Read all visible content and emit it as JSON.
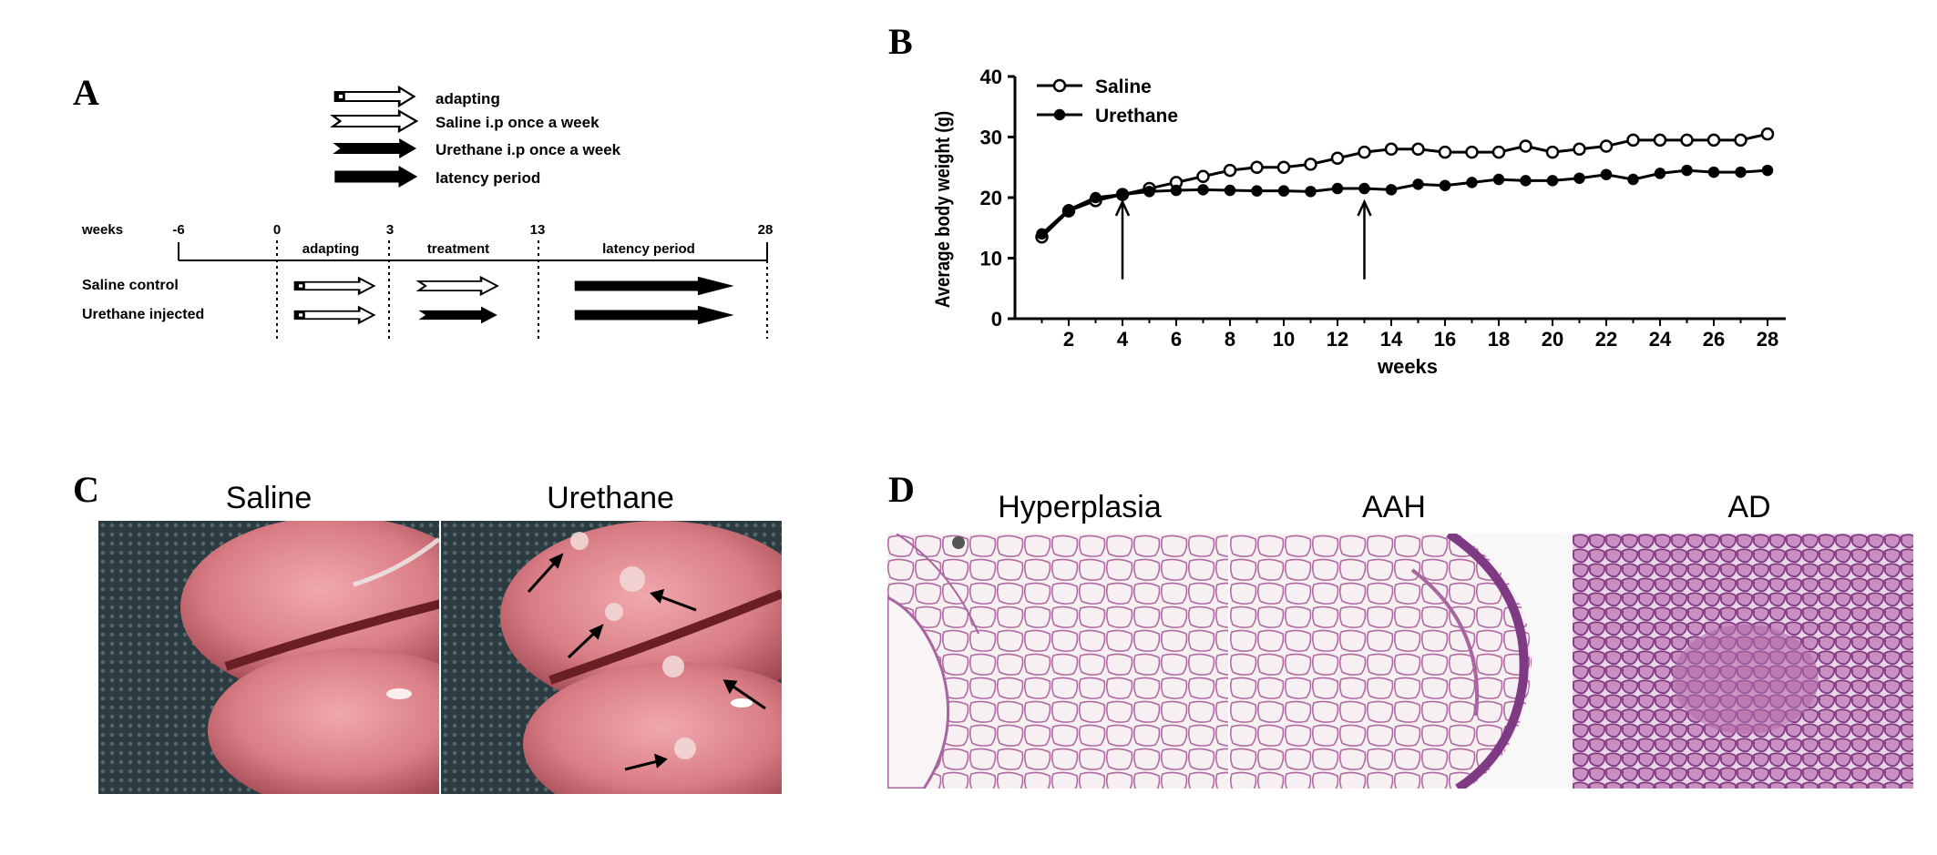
{
  "panels": {
    "a": {
      "letter": "A",
      "legend": [
        {
          "label": "adapting",
          "icon": "adapting-arrow-icon"
        },
        {
          "label": "Saline i.p once a week",
          "icon": "saline-arrow-icon"
        },
        {
          "label": "Urethane i.p once a week",
          "icon": "urethane-arrow-icon"
        },
        {
          "label": "latency period",
          "icon": "latency-arrow-icon"
        }
      ],
      "timeline_label": "weeks",
      "ticks": [
        "-6",
        "0",
        "3",
        "13",
        "28"
      ],
      "phases": [
        "adapting",
        "treatment",
        "latency period"
      ],
      "groups": [
        "Saline control",
        "Urethane injected"
      ]
    },
    "b": {
      "letter": "B"
    },
    "c": {
      "letter": "C",
      "titles": [
        "Saline",
        "Urethane"
      ]
    },
    "d": {
      "letter": "D",
      "titles": [
        "Hyperplasia",
        "AAH",
        "AD"
      ]
    }
  },
  "chart_data": {
    "type": "line",
    "xlabel": "weeks",
    "ylabel": "Average body weight (g)",
    "xlim": [
      0,
      28
    ],
    "ylim": [
      0,
      40
    ],
    "x_ticks": [
      "2",
      "4",
      "6",
      "8",
      "10",
      "12",
      "14",
      "16",
      "18",
      "20",
      "22",
      "24",
      "26",
      "28"
    ],
    "y_ticks": [
      "0",
      "10",
      "20",
      "30",
      "40"
    ],
    "legend_position": "top-left",
    "arrows_at_weeks": [
      4,
      13
    ],
    "x": [
      1,
      2,
      3,
      4,
      5,
      6,
      7,
      8,
      9,
      10,
      11,
      12,
      13,
      14,
      15,
      16,
      17,
      18,
      19,
      20,
      21,
      22,
      23,
      24,
      25,
      26,
      27,
      28
    ],
    "series": [
      {
        "name": "Saline",
        "marker": "open-circle",
        "values": [
          13.5,
          17.8,
          19.5,
          20.5,
          21.5,
          22.5,
          23.5,
          24.5,
          25,
          25,
          25.5,
          26.5,
          27.5,
          28,
          28,
          27.5,
          27.5,
          27.5,
          28.5,
          27.5,
          28,
          28.5,
          29.5,
          29.5,
          29.5,
          29.5,
          29.5,
          30.5
        ]
      },
      {
        "name": "Urethane",
        "marker": "filled-circle",
        "values": [
          14,
          18,
          20,
          20.5,
          21,
          21.2,
          21.3,
          21.2,
          21.1,
          21.1,
          21,
          21.5,
          21.5,
          21.3,
          22.2,
          22,
          22.5,
          23,
          22.8,
          22.8,
          23.2,
          23.8,
          23,
          24,
          24.5,
          24.2,
          24.2,
          24.5
        ]
      }
    ]
  }
}
